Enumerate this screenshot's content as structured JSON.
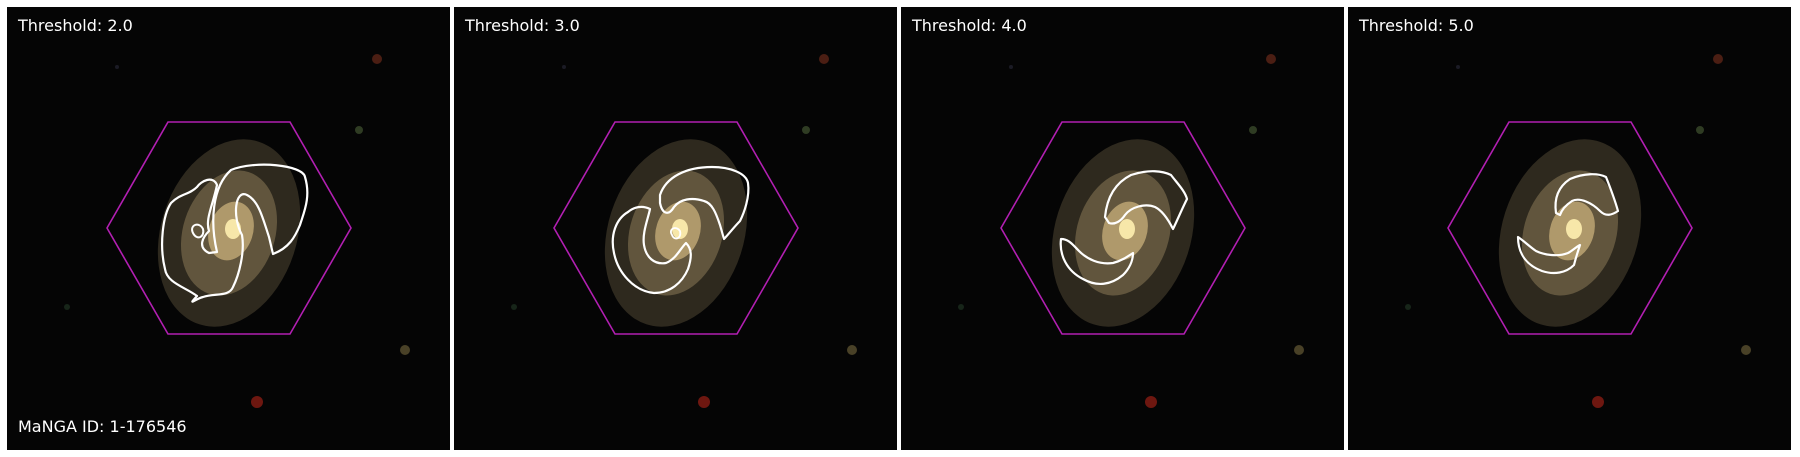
{
  "figure": {
    "manga_id_label": "MaNGA ID: 1-176546",
    "panels": [
      {
        "threshold_label": "Threshold: 2.0",
        "threshold": 2.0
      },
      {
        "threshold_label": "Threshold: 3.0",
        "threshold": 3.0
      },
      {
        "threshold_label": "Threshold: 4.0",
        "threshold": 4.0
      },
      {
        "threshold_label": "Threshold: 5.0",
        "threshold": 5.0
      }
    ]
  },
  "colors": {
    "background": "#000000",
    "hexagon": "#b21fb2",
    "contour": "#ffffff",
    "galaxy_core": "#f3d08a",
    "galaxy_halo": "#9a8a60"
  }
}
